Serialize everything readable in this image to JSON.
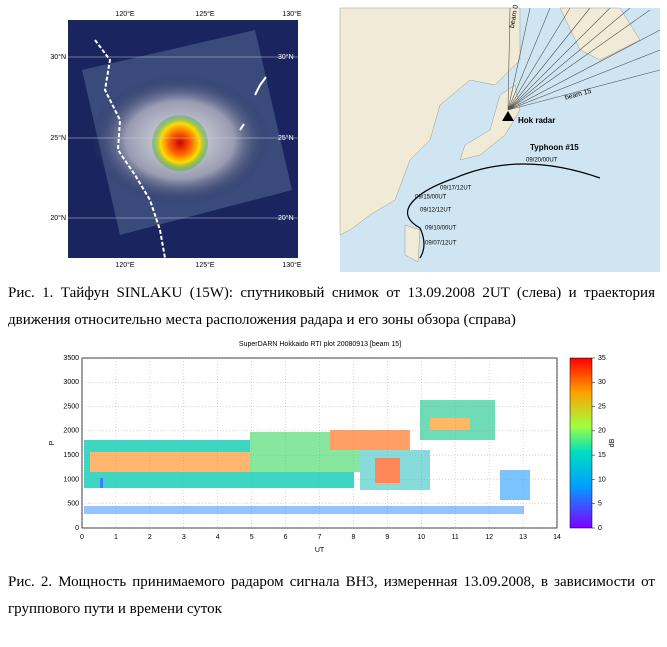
{
  "figure1": {
    "left": {
      "lon_labels": [
        "120°E",
        "125°E",
        "130°E"
      ],
      "lat_labels": [
        "30°N",
        "25°N",
        "20°N"
      ]
    },
    "right": {
      "beam_start": "beam 0",
      "beam_end": "beam 15",
      "radar": "Hok radar",
      "typhoon": "Typhoon #15",
      "track_dates": [
        "09/20/00UT",
        "09/17/12UT",
        "09/15/00UT",
        "09/12/12UT",
        "09/10/00UT",
        "09/07/12UT"
      ]
    },
    "caption": "Рис. 1. Тайфун SINLAKU (15W): спутниковый снимок от 13.09.2008 2UT (слева) и траектория движения относительно места расположения радара и его зоны обзора (справа)"
  },
  "figure2": {
    "title": "SuperDARN Hokkaido RTI plot 20080913 [beam 15]",
    "y_label": "P",
    "x_label": "UT",
    "xlim": [
      0,
      14
    ],
    "xticks": [
      0,
      1,
      2,
      3,
      4,
      5,
      6,
      7,
      8,
      9,
      10,
      11,
      12,
      13,
      14
    ],
    "ylim": [
      0,
      3500
    ],
    "yticks": [
      0,
      500,
      1000,
      1500,
      2000,
      2500,
      3000,
      3500
    ],
    "colorbar": {
      "label": "dB",
      "lim": [
        0,
        35
      ],
      "ticks": [
        0,
        5,
        10,
        15,
        20,
        25,
        30,
        35
      ]
    },
    "caption": "Рис. 2. Мощность принимаемого радаром сигнала ВН3, измеренная 13.09.2008, в зависимости от группового пути и времени суток"
  }
}
